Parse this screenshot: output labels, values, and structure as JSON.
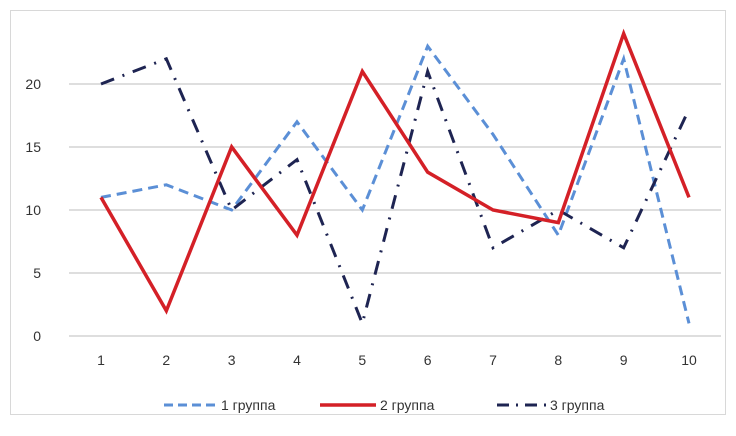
{
  "chart_data": {
    "type": "line",
    "title": "",
    "xlabel": "",
    "ylabel": "",
    "x": [
      1,
      2,
      3,
      4,
      5,
      6,
      7,
      8,
      9,
      10
    ],
    "ylim": [
      0,
      25
    ],
    "yticks": [
      0,
      5,
      10,
      15,
      20
    ],
    "grid": true,
    "legend_position": "bottom",
    "series": [
      {
        "name": "1 группа",
        "values": [
          11,
          12,
          10,
          17,
          10,
          23,
          16,
          8,
          22,
          1
        ],
        "color": "#5b8fd6",
        "style": "dashed"
      },
      {
        "name": "2 группа",
        "values": [
          11,
          2,
          15,
          8,
          21,
          13,
          10,
          9,
          24,
          11
        ],
        "color": "#d42027",
        "style": "solid"
      },
      {
        "name": "3 группа",
        "values": [
          20,
          22,
          10,
          14,
          1,
          21,
          7,
          10,
          7,
          18
        ],
        "color": "#1e2452",
        "style": "dash-dot"
      }
    ]
  }
}
